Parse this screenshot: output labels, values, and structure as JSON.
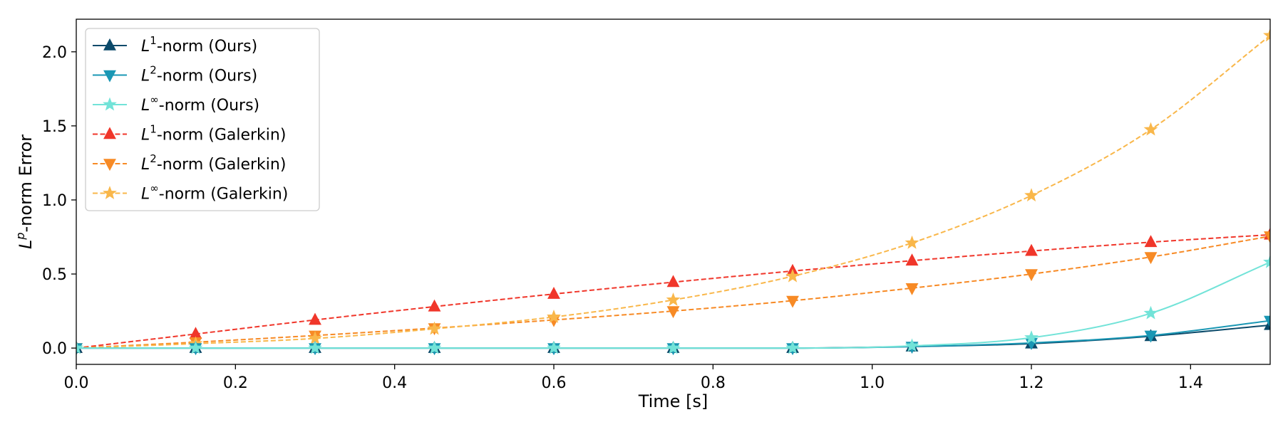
{
  "chart_data": {
    "type": "line",
    "xlabel": "Time [s]",
    "ylabel": "Lp-norm Error",
    "xlim": [
      0.0,
      1.5
    ],
    "ylim": [
      -0.11,
      2.22
    ],
    "xticks": [
      "0.0",
      "0.2",
      "0.4",
      "0.6",
      "0.8",
      "1.0",
      "1.2",
      "1.4"
    ],
    "yticks": [
      "0.0",
      "0.5",
      "1.0",
      "1.5",
      "2.0"
    ],
    "grid": false,
    "legend_position": "top-left",
    "x": [
      0.0,
      0.15,
      0.3,
      0.45,
      0.6,
      0.75,
      0.9,
      1.05,
      1.2,
      1.35,
      1.5
    ],
    "series": [
      {
        "name_base": "L",
        "name_exp": "1",
        "name_suffix": "-norm (Ours)",
        "color": "#0b4a6a",
        "marker": "triangle-up",
        "linestyle": "solid",
        "values": [
          0.0,
          0.0,
          0.0,
          0.0,
          0.0,
          0.0,
          0.0,
          0.01,
          0.03,
          0.08,
          0.155
        ]
      },
      {
        "name_base": "L",
        "name_exp": "2",
        "name_suffix": "-norm (Ours)",
        "color": "#1a97b4",
        "marker": "triangle-down",
        "linestyle": "solid",
        "values": [
          0.0,
          0.0,
          0.0,
          0.0,
          0.0,
          0.0,
          0.0,
          0.01,
          0.035,
          0.085,
          0.185
        ]
      },
      {
        "name_base": "L",
        "name_exp": "∞",
        "name_suffix": "-norm (Ours)",
        "color": "#72e3d8",
        "marker": "star",
        "linestyle": "solid",
        "values": [
          0.0,
          0.0,
          0.0,
          0.0,
          0.0,
          0.0,
          0.0,
          0.015,
          0.07,
          0.235,
          0.58
        ]
      },
      {
        "name_base": "L",
        "name_exp": "1",
        "name_suffix": "-norm (Galerkin)",
        "color": "#f0362a",
        "marker": "triangle-up",
        "linestyle": "dashed",
        "values": [
          0.0,
          0.095,
          0.19,
          0.28,
          0.365,
          0.445,
          0.52,
          0.59,
          0.655,
          0.715,
          0.765
        ]
      },
      {
        "name_base": "L",
        "name_exp": "2",
        "name_suffix": "-norm (Galerkin)",
        "color": "#f78a25",
        "marker": "triangle-down",
        "linestyle": "dashed",
        "values": [
          0.0,
          0.04,
          0.085,
          0.135,
          0.19,
          0.25,
          0.32,
          0.405,
          0.5,
          0.615,
          0.755
        ]
      },
      {
        "name_base": "L",
        "name_exp": "∞",
        "name_suffix": "-norm (Galerkin)",
        "color": "#f9b74a",
        "marker": "star",
        "linestyle": "dashed",
        "values": [
          0.0,
          0.03,
          0.065,
          0.13,
          0.21,
          0.325,
          0.485,
          0.71,
          1.03,
          1.475,
          2.11
        ]
      }
    ]
  }
}
